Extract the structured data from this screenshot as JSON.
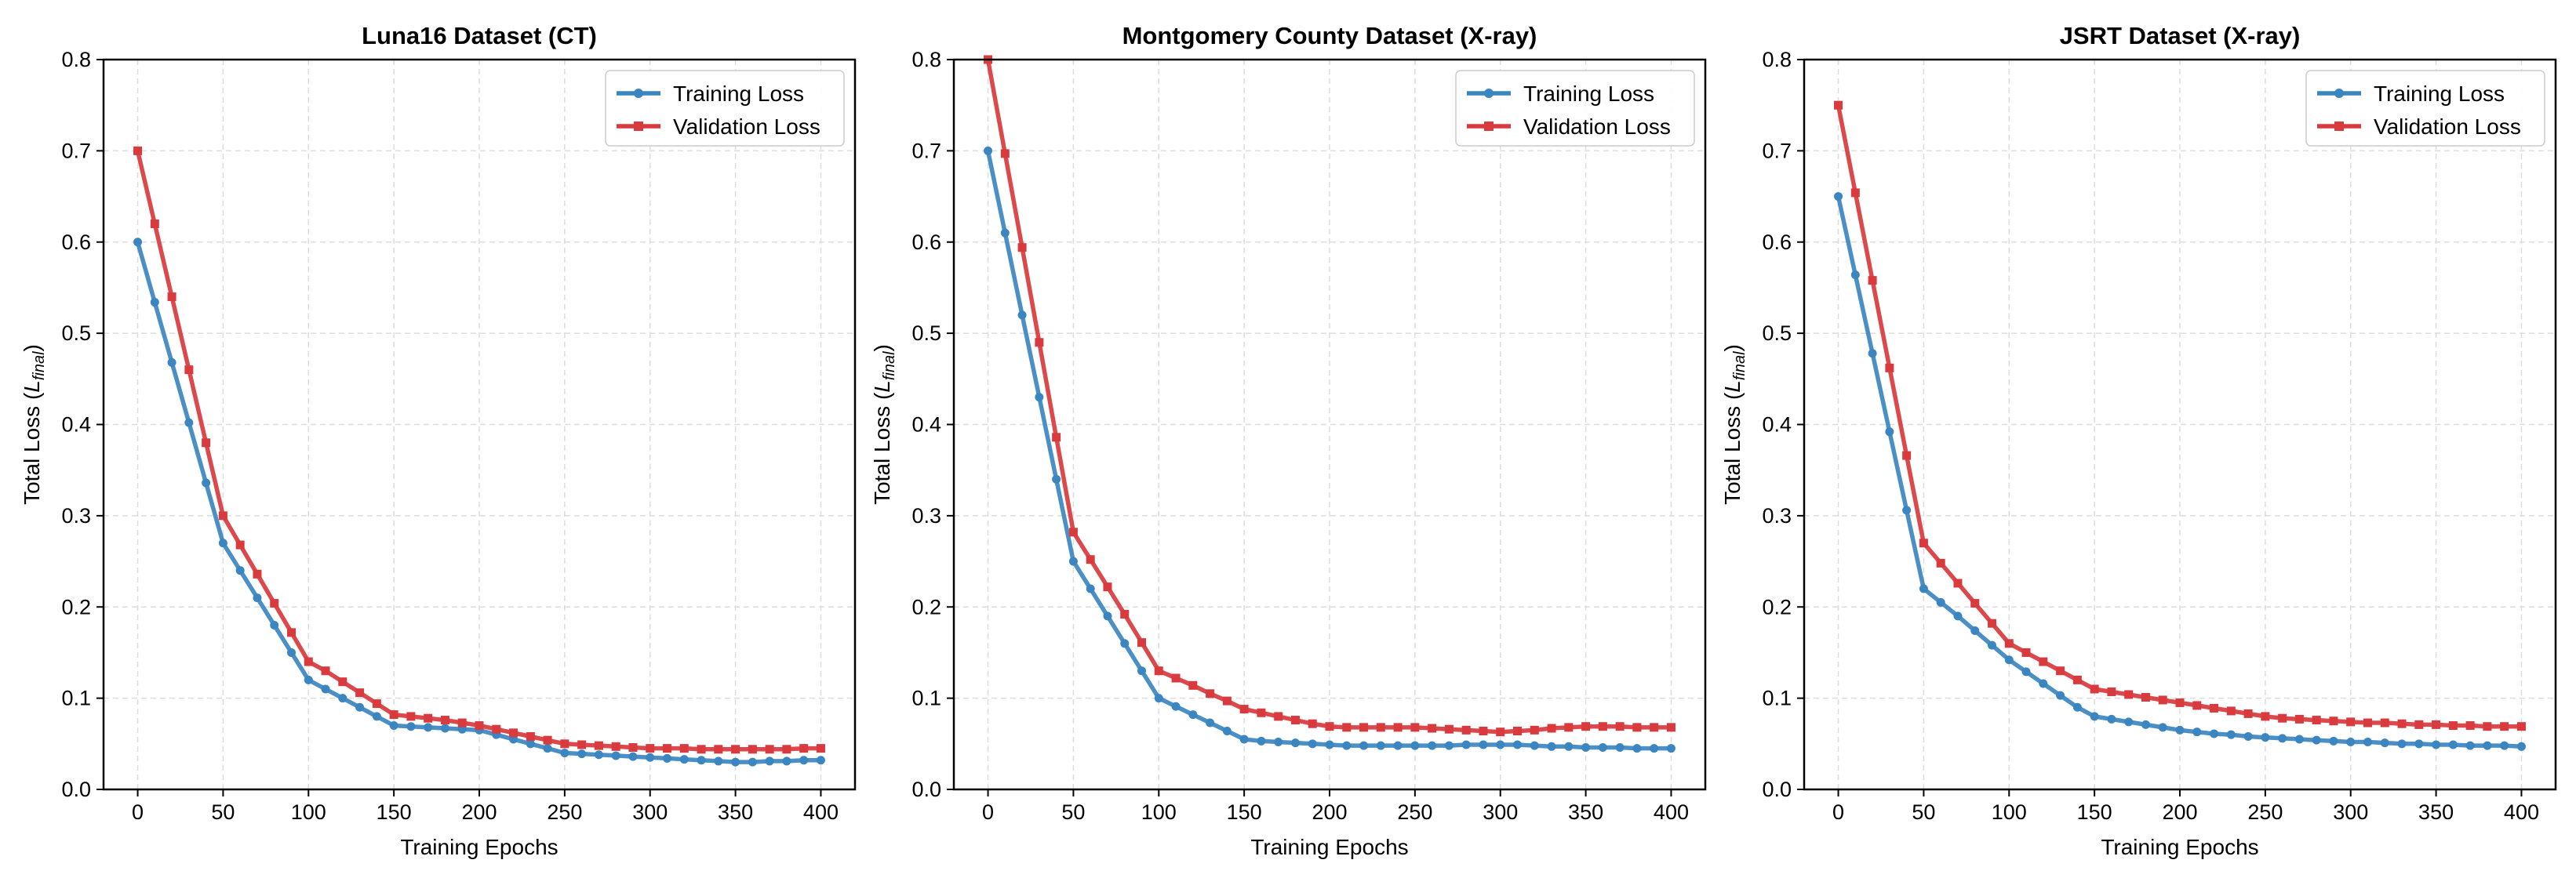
{
  "colors": {
    "training": "#3b86c0",
    "validation": "#d93a3d",
    "grid": "#dddddd",
    "axis": "#000000"
  },
  "chart_data": [
    {
      "type": "line",
      "title": "Luna16 Dataset (CT)",
      "xlabel": "Training Epochs",
      "ylabel_main": "Total Loss (",
      "ylabel_sym": "L",
      "ylabel_sub": "final",
      "ylabel_close": ")",
      "xlim": [
        -20,
        420
      ],
      "ylim": [
        0,
        0.8
      ],
      "xticks": [
        0,
        50,
        100,
        150,
        200,
        250,
        300,
        350,
        400
      ],
      "yticks": [
        0.0,
        0.1,
        0.2,
        0.3,
        0.4,
        0.5,
        0.6,
        0.7,
        0.8
      ],
      "grid": true,
      "legend": "top-right",
      "x": [
        0,
        10,
        20,
        30,
        40,
        50,
        60,
        70,
        80,
        90,
        100,
        110,
        120,
        130,
        140,
        150,
        160,
        170,
        180,
        190,
        200,
        210,
        220,
        230,
        240,
        250,
        260,
        270,
        280,
        290,
        300,
        310,
        320,
        330,
        340,
        350,
        360,
        370,
        380,
        390,
        400
      ],
      "series": [
        {
          "name": "Training Loss",
          "marker": "circle",
          "values": [
            0.6,
            0.534,
            0.468,
            0.402,
            0.336,
            0.27,
            0.24,
            0.21,
            0.18,
            0.15,
            0.12,
            0.11,
            0.1,
            0.09,
            0.08,
            0.07,
            0.069,
            0.068,
            0.067,
            0.066,
            0.065,
            0.06,
            0.055,
            0.05,
            0.045,
            0.04,
            0.039,
            0.038,
            0.037,
            0.036,
            0.035,
            0.034,
            0.033,
            0.032,
            0.031,
            0.03,
            0.03,
            0.031,
            0.031,
            0.032,
            0.032
          ]
        },
        {
          "name": "Validation Loss",
          "marker": "square",
          "values": [
            0.7,
            0.62,
            0.54,
            0.46,
            0.38,
            0.3,
            0.268,
            0.236,
            0.204,
            0.172,
            0.14,
            0.13,
            0.118,
            0.106,
            0.094,
            0.082,
            0.08,
            0.078,
            0.076,
            0.073,
            0.07,
            0.066,
            0.062,
            0.058,
            0.054,
            0.05,
            0.049,
            0.048,
            0.047,
            0.046,
            0.045,
            0.045,
            0.045,
            0.044,
            0.044,
            0.044,
            0.044,
            0.044,
            0.044,
            0.045,
            0.045
          ]
        }
      ]
    },
    {
      "type": "line",
      "title": "Montgomery County Dataset (X-ray)",
      "xlabel": "Training Epochs",
      "ylabel_main": "Total Loss (",
      "ylabel_sym": "L",
      "ylabel_sub": "final",
      "ylabel_close": ")",
      "xlim": [
        -20,
        420
      ],
      "ylim": [
        0,
        0.8
      ],
      "xticks": [
        0,
        50,
        100,
        150,
        200,
        250,
        300,
        350,
        400
      ],
      "yticks": [
        0.0,
        0.1,
        0.2,
        0.3,
        0.4,
        0.5,
        0.6,
        0.7,
        0.8
      ],
      "grid": true,
      "legend": "top-right",
      "x": [
        0,
        10,
        20,
        30,
        40,
        50,
        60,
        70,
        80,
        90,
        100,
        110,
        120,
        130,
        140,
        150,
        160,
        170,
        180,
        190,
        200,
        210,
        220,
        230,
        240,
        250,
        260,
        270,
        280,
        290,
        300,
        310,
        320,
        330,
        340,
        350,
        360,
        370,
        380,
        390,
        400
      ],
      "series": [
        {
          "name": "Training Loss",
          "marker": "circle",
          "values": [
            0.7,
            0.61,
            0.52,
            0.43,
            0.34,
            0.25,
            0.22,
            0.19,
            0.16,
            0.13,
            0.1,
            0.091,
            0.082,
            0.073,
            0.064,
            0.055,
            0.053,
            0.052,
            0.051,
            0.05,
            0.049,
            0.048,
            0.048,
            0.048,
            0.048,
            0.048,
            0.048,
            0.048,
            0.049,
            0.049,
            0.049,
            0.049,
            0.048,
            0.047,
            0.047,
            0.046,
            0.046,
            0.046,
            0.045,
            0.045,
            0.045
          ]
        },
        {
          "name": "Validation Loss",
          "marker": "square",
          "values": [
            0.8,
            0.697,
            0.594,
            0.49,
            0.386,
            0.282,
            0.252,
            0.222,
            0.192,
            0.161,
            0.13,
            0.122,
            0.114,
            0.105,
            0.097,
            0.088,
            0.084,
            0.08,
            0.076,
            0.072,
            0.069,
            0.068,
            0.068,
            0.068,
            0.068,
            0.068,
            0.067,
            0.066,
            0.065,
            0.064,
            0.063,
            0.064,
            0.065,
            0.067,
            0.068,
            0.069,
            0.069,
            0.069,
            0.068,
            0.068,
            0.068
          ]
        }
      ]
    },
    {
      "type": "line",
      "title": "JSRT Dataset (X-ray)",
      "xlabel": "Training Epochs",
      "ylabel_main": "Total Loss (",
      "ylabel_sym": "L",
      "ylabel_sub": "final",
      "ylabel_close": ")",
      "xlim": [
        -20,
        420
      ],
      "ylim": [
        0,
        0.8
      ],
      "xticks": [
        0,
        50,
        100,
        150,
        200,
        250,
        300,
        350,
        400
      ],
      "yticks": [
        0.0,
        0.1,
        0.2,
        0.3,
        0.4,
        0.5,
        0.6,
        0.7,
        0.8
      ],
      "grid": true,
      "legend": "top-right",
      "x": [
        0,
        10,
        20,
        30,
        40,
        50,
        60,
        70,
        80,
        90,
        100,
        110,
        120,
        130,
        140,
        150,
        160,
        170,
        180,
        190,
        200,
        210,
        220,
        230,
        240,
        250,
        260,
        270,
        280,
        290,
        300,
        310,
        320,
        330,
        340,
        350,
        360,
        370,
        380,
        390,
        400
      ],
      "series": [
        {
          "name": "Training Loss",
          "marker": "circle",
          "values": [
            0.65,
            0.564,
            0.478,
            0.392,
            0.306,
            0.22,
            0.205,
            0.19,
            0.174,
            0.158,
            0.142,
            0.129,
            0.116,
            0.103,
            0.09,
            0.08,
            0.077,
            0.074,
            0.071,
            0.068,
            0.065,
            0.063,
            0.061,
            0.06,
            0.058,
            0.057,
            0.056,
            0.055,
            0.054,
            0.053,
            0.052,
            0.052,
            0.051,
            0.05,
            0.05,
            0.049,
            0.049,
            0.048,
            0.048,
            0.048,
            0.047
          ]
        },
        {
          "name": "Validation Loss",
          "marker": "square",
          "values": [
            0.75,
            0.654,
            0.558,
            0.462,
            0.366,
            0.27,
            0.248,
            0.226,
            0.204,
            0.182,
            0.16,
            0.15,
            0.14,
            0.13,
            0.12,
            0.11,
            0.107,
            0.104,
            0.101,
            0.098,
            0.095,
            0.092,
            0.089,
            0.086,
            0.083,
            0.08,
            0.078,
            0.077,
            0.076,
            0.075,
            0.074,
            0.073,
            0.073,
            0.072,
            0.071,
            0.071,
            0.07,
            0.07,
            0.069,
            0.069,
            0.069
          ]
        }
      ]
    }
  ]
}
